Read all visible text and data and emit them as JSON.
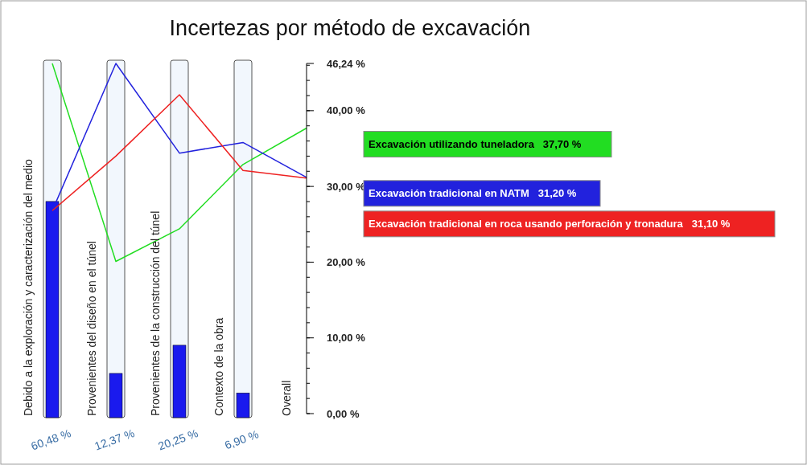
{
  "chart_data": {
    "type": "line",
    "title": "Incertezas por método de excavación",
    "categories": [
      "Debido a la exploración y caracterización del medio",
      "Provenientes del diseño en el túnel",
      "Provenientes de la construcción del túnel",
      "Contexto de la obra",
      "Overall"
    ],
    "series": [
      {
        "type": "bar",
        "axis": "y2",
        "color": "#1a1aee",
        "values": [
          60.48,
          12.37,
          20.25,
          6.9,
          null
        ],
        "value_labels": [
          "60,48 %",
          "12,37 %",
          "20,25 %",
          "6,90 %",
          null
        ]
      },
      {
        "name": "Excavación utilizando tuneladora   37,70 %",
        "color": "#22dd22",
        "values": [
          46.24,
          20.1,
          24.4,
          32.9,
          37.7
        ]
      },
      {
        "name": "Excavación tradicional en NATM   31,20 %",
        "color": "#2222dd",
        "values": [
          26.8,
          46.24,
          34.4,
          35.8,
          31.2
        ]
      },
      {
        "name": "Excavación tradicional en roca usando perforación y tronadura   31,10 %",
        "color": "#ee2222",
        "values": [
          26.8,
          34.0,
          42.1,
          32.1,
          31.1
        ]
      }
    ],
    "ylim": [
      0,
      46.24
    ],
    "yticks": [
      {
        "value": 0,
        "label": "0,00 %"
      },
      {
        "value": 10,
        "label": "10,00 %"
      },
      {
        "value": 20,
        "label": "20,00 %"
      },
      {
        "value": 30,
        "label": "30,00 %"
      },
      {
        "value": 40,
        "label": "40,00 %"
      },
      {
        "value": 46.24,
        "label": "46,24 %"
      }
    ],
    "y2lim": [
      0,
      100
    ],
    "grid": false,
    "marker": "none",
    "line_style": "solid"
  }
}
